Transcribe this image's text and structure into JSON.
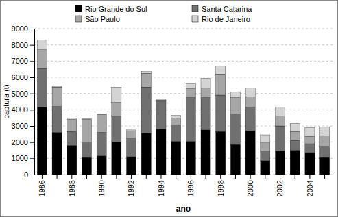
{
  "chart_data": {
    "type": "bar",
    "stacked": true,
    "x_label": "ano",
    "y_label": "captura (t)",
    "categories": [
      "1986",
      null,
      "1988",
      null,
      "1990",
      null,
      "1992",
      null,
      "1994",
      null,
      "1996",
      null,
      "1998",
      null,
      "2000",
      null,
      "2002",
      null,
      "2004",
      null
    ],
    "series": [
      {
        "name": "Rio Grande do Sul",
        "color": "#000000",
        "values": [
          4150,
          2600,
          1800,
          1050,
          1150,
          2000,
          1100,
          2550,
          2800,
          2050,
          2050,
          2750,
          2650,
          1850,
          2700,
          850,
          1450,
          1500,
          1350,
          1050
        ]
      },
      {
        "name": "Santa Catarina",
        "color": "#707070",
        "values": [
          2400,
          1600,
          850,
          900,
          1450,
          1600,
          1150,
          2850,
          1700,
          1000,
          2700,
          2000,
          2250,
          1900,
          1450,
          600,
          1550,
          600,
          550,
          650
        ]
      },
      {
        "name": "São Paulo",
        "color": "#a6a6a6",
        "values": [
          1150,
          1200,
          750,
          1450,
          1100,
          850,
          450,
          850,
          100,
          450,
          550,
          600,
          1300,
          1000,
          650,
          500,
          600,
          550,
          450,
          700
        ]
      },
      {
        "name": "Rio de Janeiro",
        "color": "#d4d4d4",
        "values": [
          600,
          50,
          100,
          50,
          50,
          950,
          50,
          100,
          50,
          150,
          350,
          600,
          500,
          350,
          550,
          500,
          550,
          500,
          550,
          550
        ]
      }
    ],
    "ylim": [
      0,
      9000
    ],
    "yticks": [
      0,
      1000,
      2000,
      3000,
      4000,
      5000,
      6000,
      7000,
      8000,
      9000
    ],
    "grid": true,
    "legend": "top"
  }
}
